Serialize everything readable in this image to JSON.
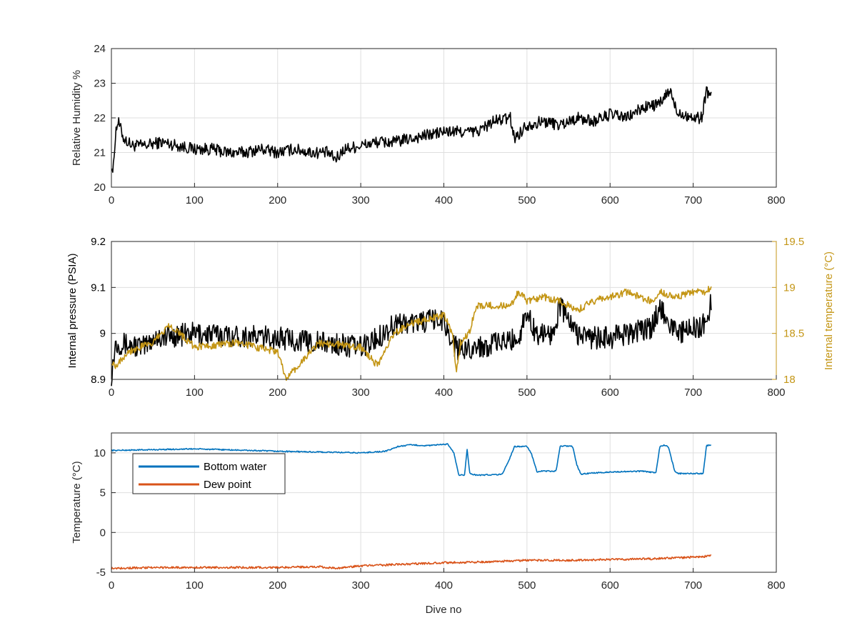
{
  "chart_data": [
    {
      "type": "line",
      "xlabel": "",
      "ylabel": "Relative Humidity %",
      "xlim": [
        0,
        800
      ],
      "ylim": [
        20,
        24
      ],
      "xticks": [
        0,
        100,
        200,
        300,
        400,
        500,
        600,
        700,
        800
      ],
      "yticks": [
        20,
        21,
        22,
        23,
        24
      ],
      "grid": true,
      "legend": "none",
      "series": [
        {
          "color": "#000000",
          "x": [
            0,
            2,
            5,
            8,
            15,
            25,
            40,
            60,
            80,
            100,
            120,
            140,
            160,
            180,
            200,
            220,
            240,
            260,
            270,
            280,
            300,
            320,
            340,
            360,
            380,
            400,
            420,
            440,
            460,
            480,
            485,
            500,
            520,
            540,
            560,
            580,
            600,
            620,
            640,
            660,
            672,
            680,
            700,
            710,
            716,
            722
          ],
          "y": [
            20.7,
            20.4,
            21.6,
            21.9,
            21.4,
            21.2,
            21.2,
            21.3,
            21.2,
            21.1,
            21.1,
            21.0,
            21.0,
            21.1,
            21.0,
            21.1,
            21.0,
            21.0,
            20.8,
            21.1,
            21.2,
            21.3,
            21.3,
            21.4,
            21.5,
            21.6,
            21.6,
            21.6,
            21.9,
            22.0,
            21.4,
            21.8,
            21.9,
            21.8,
            22.0,
            21.9,
            22.1,
            22.0,
            22.3,
            22.4,
            22.8,
            22.2,
            22.0,
            22.0,
            22.8,
            22.6
          ],
          "noise": 0.35
        }
      ]
    },
    {
      "type": "line",
      "xlabel": "",
      "ylabel": "Internal pressure (PSIA)",
      "y2label": "Internal temperature (°C)",
      "xlim": [
        0,
        800
      ],
      "ylim": [
        8.9,
        9.2
      ],
      "y2lim": [
        18,
        19.5
      ],
      "xticks": [
        0,
        100,
        200,
        300,
        400,
        500,
        600,
        700,
        800
      ],
      "yticks": [
        8.9,
        9.0,
        9.1,
        9.2
      ],
      "y2ticks": [
        18,
        18.5,
        19,
        19.5
      ],
      "grid": true,
      "legend": "none",
      "series": [
        {
          "axis": "left",
          "color": "#000000",
          "x": [
            0,
            5,
            40,
            50,
            100,
            200,
            300,
            320,
            340,
            400,
            410,
            420,
            430,
            440,
            470,
            490,
            500,
            510,
            530,
            540,
            560,
            580,
            600,
            620,
            650,
            660,
            680,
            700,
            715,
            722
          ],
          "y": [
            8.91,
            8.98,
            8.97,
            8.99,
            9.0,
            8.99,
            8.97,
            8.99,
            9.02,
            9.03,
            8.98,
            8.96,
            8.97,
            8.97,
            8.98,
            8.99,
            9.05,
            9.0,
            9.0,
            9.06,
            9.0,
            8.99,
            8.99,
            9.0,
            9.01,
            9.06,
            9.0,
            9.01,
            9.02,
            9.07
          ],
          "noise": 0.05
        },
        {
          "axis": "right",
          "color": "#C49616",
          "x": [
            0,
            5,
            20,
            50,
            70,
            100,
            150,
            200,
            210,
            250,
            300,
            320,
            340,
            360,
            400,
            410,
            415,
            420,
            430,
            440,
            460,
            480,
            490,
            500,
            520,
            540,
            560,
            580,
            600,
            620,
            650,
            660,
            680,
            700,
            715,
            722
          ],
          "y": [
            18.2,
            18.15,
            18.3,
            18.4,
            18.6,
            18.35,
            18.4,
            18.3,
            18.0,
            18.4,
            18.35,
            18.15,
            18.5,
            18.6,
            18.7,
            18.5,
            18.1,
            18.4,
            18.5,
            18.8,
            18.8,
            18.8,
            18.95,
            18.85,
            18.9,
            18.85,
            18.75,
            18.85,
            18.9,
            18.95,
            18.85,
            18.95,
            18.9,
            18.95,
            18.95,
            19.0
          ],
          "noise": 0.08
        }
      ]
    },
    {
      "type": "line",
      "xlabel": "Dive no",
      "ylabel": "Temperature (°C)",
      "xlim": [
        0,
        800
      ],
      "ylim": [
        -5,
        12.5
      ],
      "xticks": [
        0,
        100,
        200,
        300,
        400,
        500,
        600,
        700,
        800
      ],
      "yticks": [
        -5,
        0,
        5,
        10
      ],
      "grid": true,
      "legend": "upper-left",
      "series": [
        {
          "name": "Bottom water",
          "color": "#0072BD",
          "x": [
            0,
            100,
            200,
            300,
            330,
            345,
            360,
            380,
            405,
            412,
            418,
            425,
            428,
            431,
            434,
            440,
            470,
            478,
            485,
            500,
            505,
            512,
            518,
            535,
            540,
            545,
            555,
            560,
            565,
            570,
            600,
            640,
            655,
            660,
            665,
            670,
            678,
            682,
            700,
            712,
            716,
            722
          ],
          "y": [
            10.3,
            10.5,
            10.2,
            10.0,
            10.2,
            10.8,
            11.0,
            10.9,
            11.1,
            10.0,
            7.2,
            7.2,
            10.5,
            7.5,
            7.3,
            7.2,
            7.3,
            9.0,
            10.8,
            10.8,
            10.0,
            7.6,
            7.7,
            7.7,
            10.8,
            10.9,
            10.8,
            8.5,
            7.3,
            7.4,
            7.6,
            7.7,
            7.5,
            10.8,
            11.0,
            10.8,
            7.6,
            7.4,
            7.4,
            7.4,
            10.9,
            11.0
          ],
          "noise": 0.15
        },
        {
          "name": "Dew point",
          "color": "#D95319",
          "x": [
            0,
            50,
            100,
            150,
            200,
            250,
            270,
            300,
            350,
            400,
            450,
            500,
            550,
            600,
            650,
            700,
            715,
            722
          ],
          "y": [
            -4.5,
            -4.4,
            -4.4,
            -4.4,
            -4.4,
            -4.3,
            -4.5,
            -4.2,
            -4.0,
            -3.8,
            -3.7,
            -3.5,
            -3.5,
            -3.4,
            -3.3,
            -3.1,
            -3.0,
            -2.9
          ],
          "noise": 0.25
        }
      ]
    }
  ]
}
